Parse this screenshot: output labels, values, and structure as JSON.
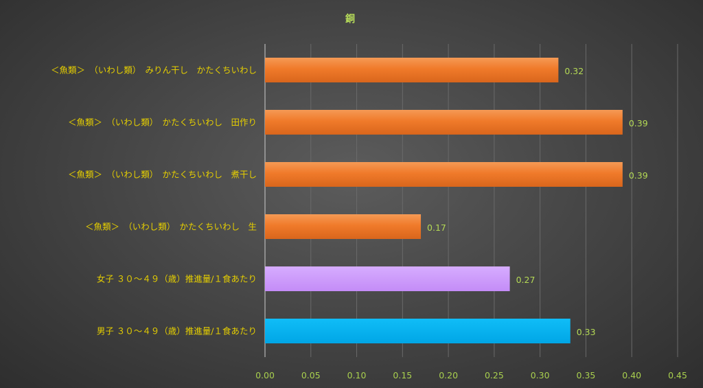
{
  "chart_data": {
    "type": "bar",
    "orientation": "horizontal",
    "title": "銅",
    "categories": [
      "＜魚類＞　（いわし類）　みりん干し　かたくちいわし",
      "＜魚類＞　（いわし類）　かたくちいわし　田作り",
      "＜魚類＞　（いわし類）　かたくちいわし　煮干し",
      "＜魚類＞　（いわし類）　かたくちいわし　生",
      "女子 ３０～４９（歳）推進量/１食あたり",
      "男子 ３０～４９（歳）推進量/１食あたり"
    ],
    "values": [
      0.32,
      0.39,
      0.39,
      0.17,
      0.267,
      0.333
    ],
    "value_labels": [
      "0.32",
      "0.39",
      "0.39",
      "0.17",
      "0.27",
      "0.33"
    ],
    "bar_colors": [
      "#f07a2a",
      "#f07a2a",
      "#f07a2a",
      "#f07a2a",
      "#cc99ff",
      "#00b0f0"
    ],
    "xlim": [
      0,
      0.45
    ],
    "x_ticks": [
      "0.00",
      "0.05",
      "0.10",
      "0.15",
      "0.20",
      "0.25",
      "0.30",
      "0.35",
      "0.40",
      "0.45"
    ],
    "grid": "vertical",
    "legend": "none"
  }
}
